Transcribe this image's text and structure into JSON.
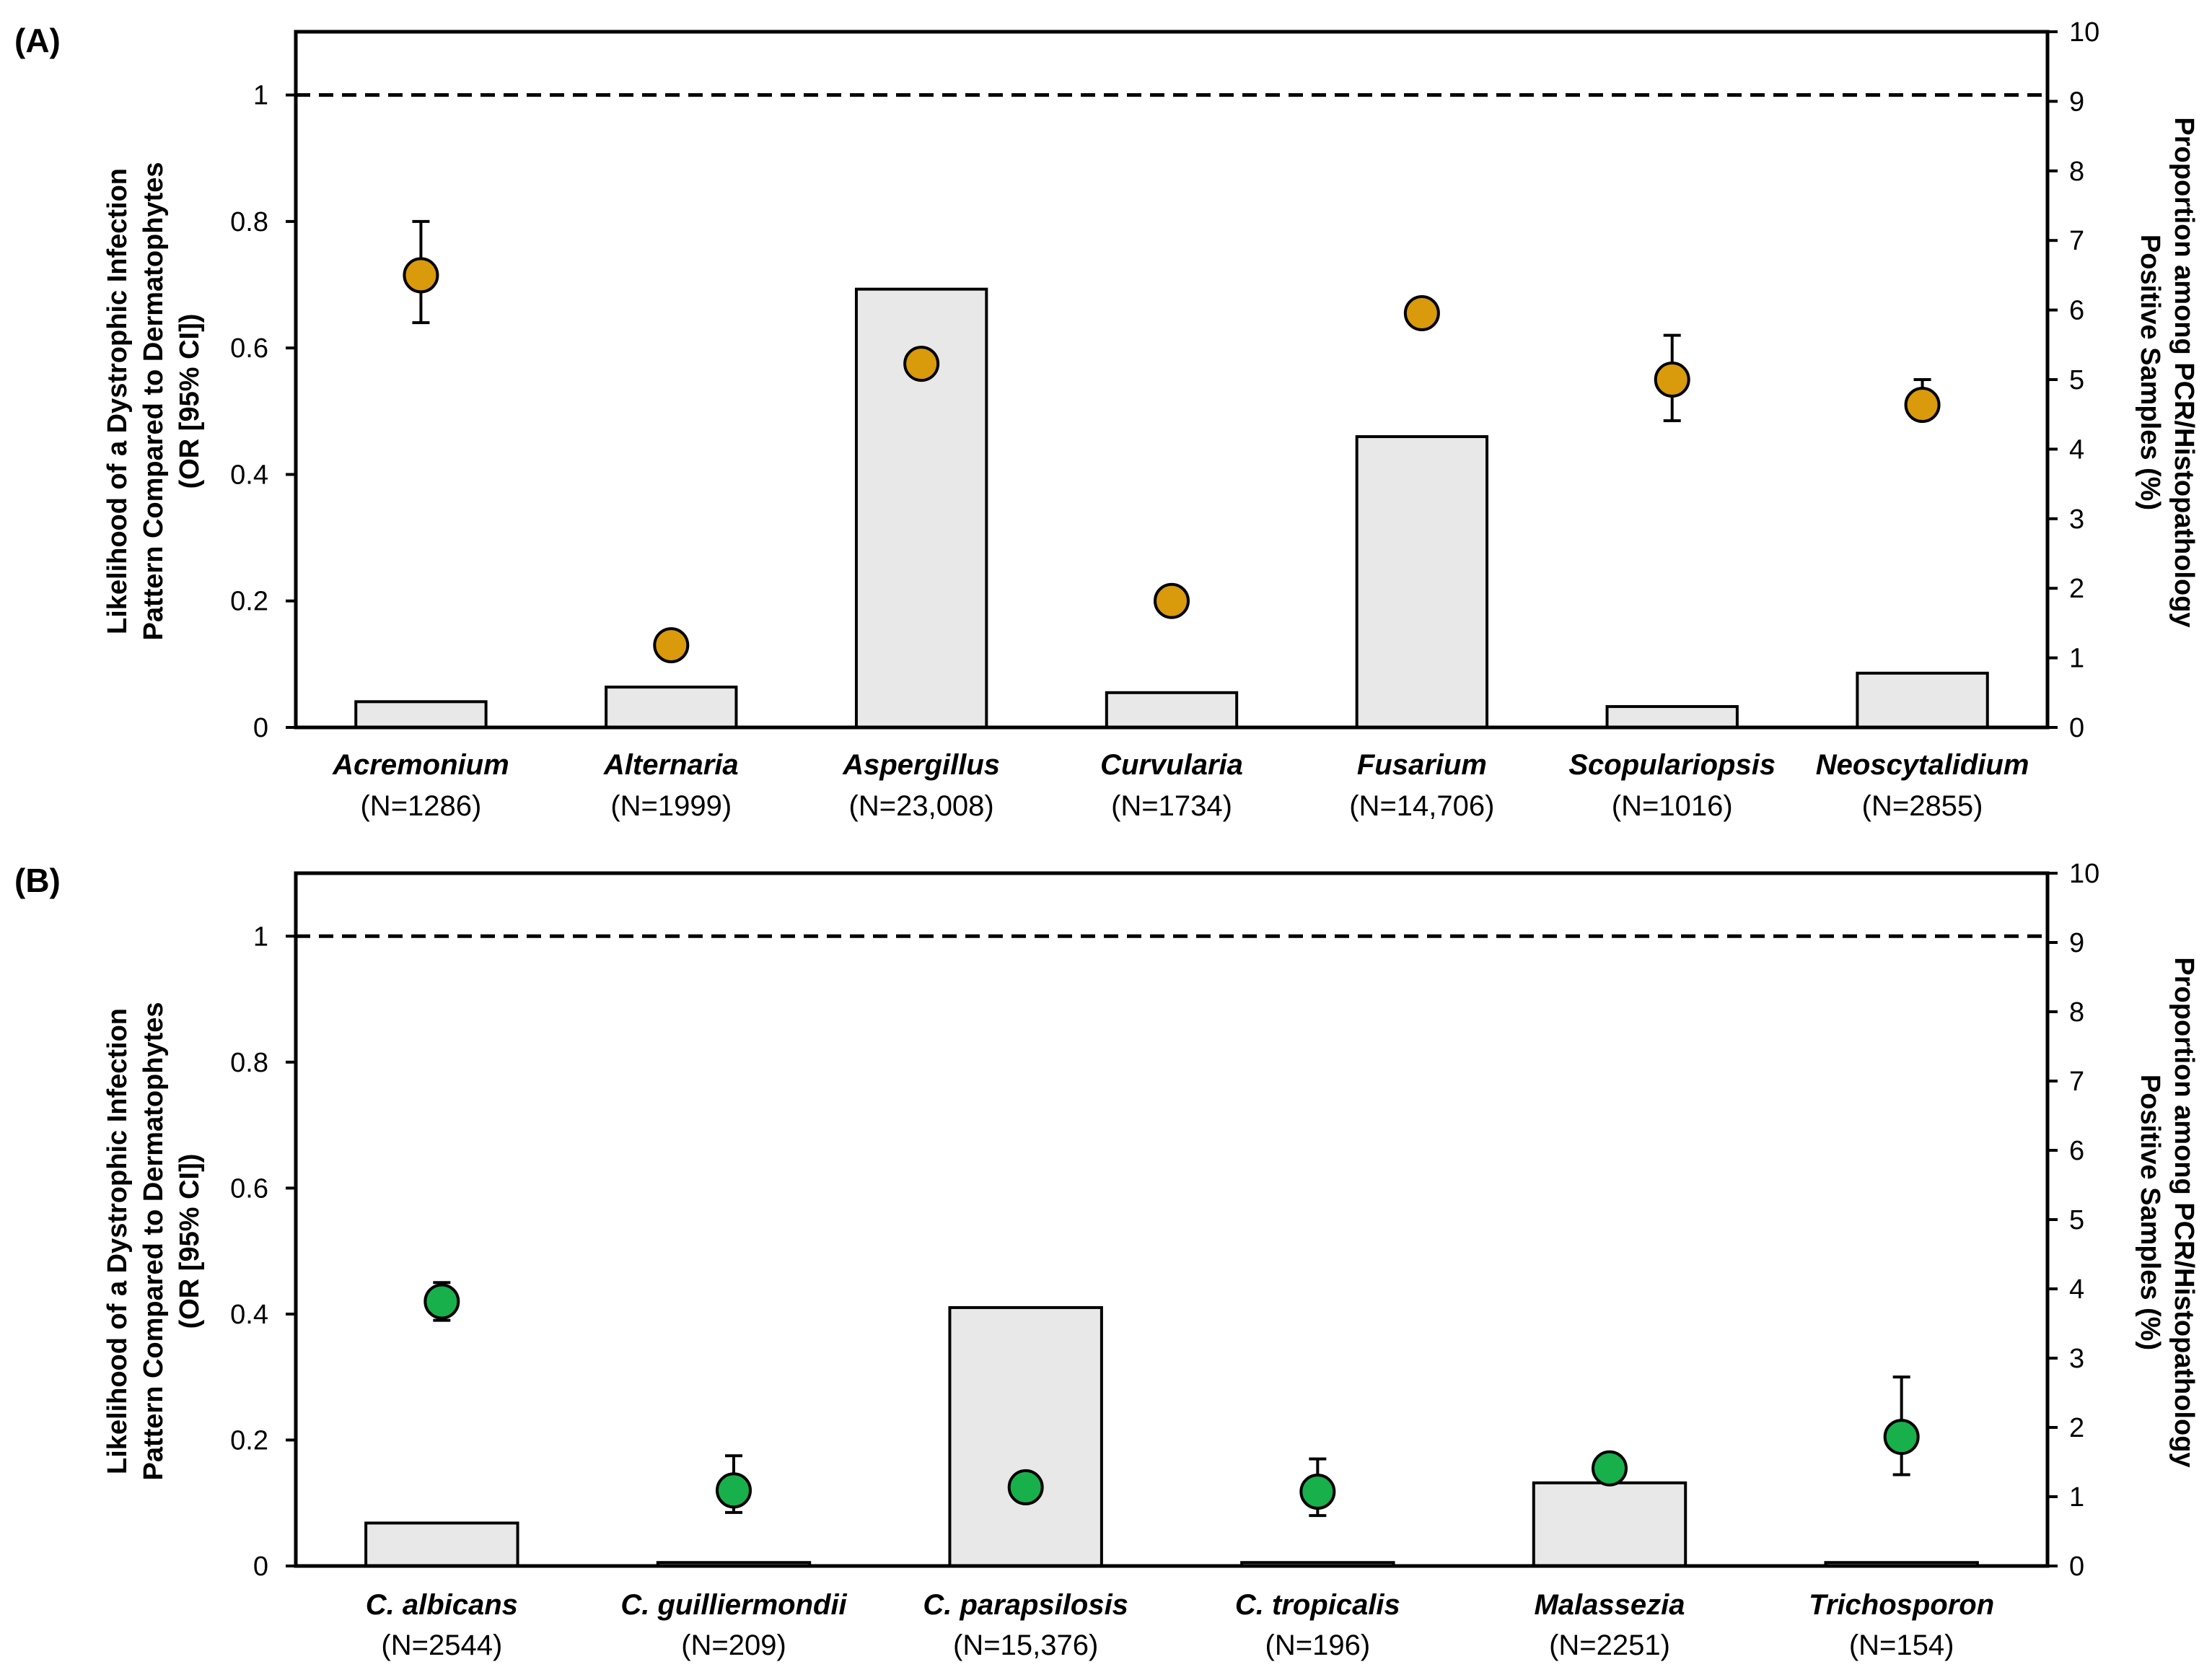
{
  "chart_data": [
    {
      "panel_label": "(A)",
      "type": "bar",
      "y_left_label_lines": [
        "Likelihood  of a Dystrophic Infection",
        "Pattern Compared to Dermatophytes",
        "(OR [95% CI])"
      ],
      "y_right_label_lines": [
        "Proportion  among PCR/Histopathology",
        "Positive Samples (%)"
      ],
      "y_left_ticks": [
        "0",
        "0.2",
        "0.4",
        "0.6",
        "0.8",
        "1"
      ],
      "y_right_ticks": [
        "0",
        "1",
        "2",
        "3",
        "4",
        "5",
        "6",
        "7",
        "8",
        "9",
        "10"
      ],
      "ylim_left": [
        0,
        1.1
      ],
      "ylim_right": [
        0,
        10
      ],
      "reference_line": 1,
      "categories": [
        "Acremonium",
        "Alternaria",
        "Aspergillus",
        "Curvularia",
        "Fusarium",
        "Scopulariopsis",
        "Neoscytalidium"
      ],
      "counts": [
        "(N=1286)",
        "(N=1999)",
        "(N=23,008)",
        "(N=1734)",
        "(N=14,706)",
        "(N=1016)",
        "(N=2855)"
      ],
      "bar_values_percent": [
        0.37,
        0.58,
        6.3,
        0.5,
        4.18,
        0.3,
        0.78
      ],
      "odds_ratio": [
        0.715,
        0.13,
        0.575,
        0.2,
        0.655,
        0.55,
        0.51
      ],
      "ci_lower": [
        0.64,
        null,
        null,
        null,
        null,
        0.485,
        0.49
      ],
      "ci_upper": [
        0.8,
        null,
        null,
        null,
        null,
        0.62,
        0.55
      ],
      "colors": {
        "marker": "#D99A0B",
        "bar": "#E8E8E8",
        "edge": "#000000"
      }
    },
    {
      "panel_label": "(B)",
      "type": "bar",
      "y_left_label_lines": [
        "Likelihood  of a Dystrophic Infection",
        "Pattern Compared to Dermatophytes",
        "(OR [95% CI])"
      ],
      "y_right_label_lines": [
        "Proportion  among PCR/Histopathology",
        "Positive Samples (%)"
      ],
      "y_left_ticks": [
        "0",
        "0.2",
        "0.4",
        "0.6",
        "0.8",
        "1"
      ],
      "y_right_ticks": [
        "0",
        "1",
        "2",
        "3",
        "4",
        "5",
        "6",
        "7",
        "8",
        "9",
        "10"
      ],
      "ylim_left": [
        0,
        1.1
      ],
      "ylim_right": [
        0,
        10
      ],
      "reference_line": 1,
      "categories": [
        "C. albicans",
        "C. guilliermondii",
        "C. parapsilosis",
        "C. tropicalis",
        "Malassezia",
        "Trichosporon"
      ],
      "counts": [
        "(N=2544)",
        "(N=209)",
        "(N=15,376)",
        "(N=196)",
        "(N=2251)",
        "(N=154)"
      ],
      "bar_values_percent": [
        0.62,
        0.05,
        3.73,
        0.05,
        1.2,
        0.05
      ],
      "odds_ratio": [
        0.42,
        0.12,
        0.125,
        0.118,
        0.155,
        0.205
      ],
      "ci_lower": [
        0.39,
        0.085,
        null,
        0.08,
        null,
        0.145
      ],
      "ci_upper": [
        0.45,
        0.175,
        null,
        0.17,
        null,
        0.3
      ],
      "colors": {
        "marker": "#18B04A",
        "bar": "#E8E8E8",
        "edge": "#000000"
      }
    }
  ]
}
